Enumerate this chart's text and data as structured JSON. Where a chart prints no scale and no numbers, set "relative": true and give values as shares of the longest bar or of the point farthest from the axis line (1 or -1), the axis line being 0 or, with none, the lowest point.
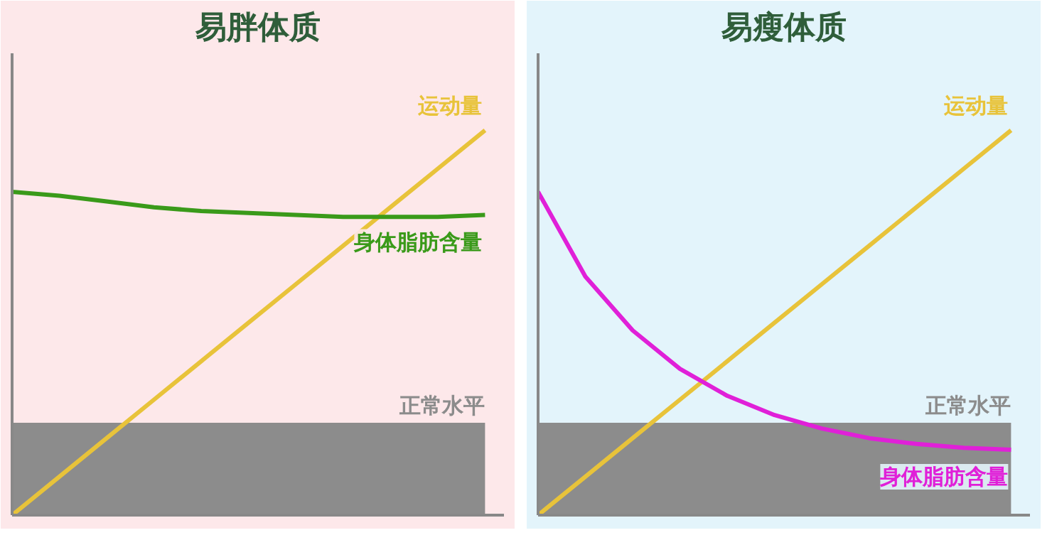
{
  "chart_data": [
    {
      "type": "line",
      "title": "易胖体质",
      "relative": true,
      "grid": false,
      "categories": [
        null,
        null,
        null,
        null,
        null,
        null,
        null,
        null,
        null,
        null,
        null
      ],
      "series": [
        {
          "name": "运动量",
          "color": "#e8c33a",
          "values": [
            0,
            0.1,
            0.2,
            0.3,
            0.4,
            0.5,
            0.6,
            0.7,
            0.8,
            0.9,
            1
          ]
        },
        {
          "name": "身体脂肪含量",
          "color": "#3a9a1a",
          "values": [
            0.84,
            0.83,
            0.815,
            0.8,
            0.79,
            0.785,
            0.78,
            0.775,
            0.775,
            0.775,
            0.78
          ]
        }
      ],
      "bands": [
        {
          "axis": "y",
          "from": 0,
          "to": 0.24,
          "label": "正常水平",
          "color": "#8c8c8c"
        }
      ]
    },
    {
      "type": "line",
      "title": "易瘦体质",
      "relative": true,
      "grid": false,
      "categories": [
        null,
        null,
        null,
        null,
        null,
        null,
        null,
        null,
        null,
        null,
        null
      ],
      "series": [
        {
          "name": "运动量",
          "color": "#e8c33a",
          "values": [
            0,
            0.1,
            0.2,
            0.3,
            0.4,
            0.5,
            0.6,
            0.7,
            0.8,
            0.9,
            1
          ]
        },
        {
          "name": "身体脂肪含量",
          "color": "#e020d8",
          "values": [
            0.84,
            0.62,
            0.48,
            0.38,
            0.31,
            0.26,
            0.225,
            0.2,
            0.185,
            0.175,
            0.17
          ]
        }
      ],
      "bands": [
        {
          "axis": "y",
          "from": 0,
          "to": 0.24,
          "label": "正常水平",
          "color": "#8c8c8c"
        }
      ]
    }
  ]
}
